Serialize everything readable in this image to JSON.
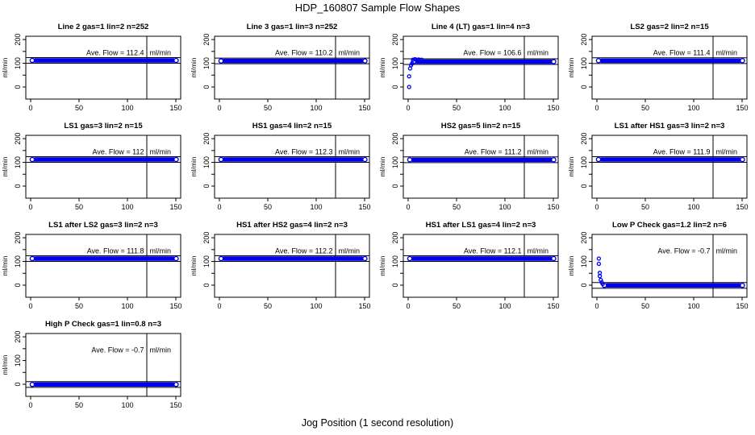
{
  "page": {
    "title": "HDP_160807  Sample Flow Shapes",
    "xlabel": "Jog Position (1 second resolution)"
  },
  "chart_data": {
    "type": "scatter",
    "title": "HDP_160807  Sample Flow Shapes",
    "xlabel": "Jog Position (1 second resolution)",
    "ylabel": "ml/min",
    "unit": "ml/min",
    "ave_label": "Ave. Flow = ",
    "axes": {
      "xlim": [
        -5,
        155
      ],
      "ylim": [
        -51,
        214
      ],
      "x_ticks": [
        0,
        50,
        100,
        150
      ],
      "y_ticks": [
        0,
        50,
        100,
        150,
        200
      ],
      "y_labeled_ticks": [
        0,
        100,
        200
      ],
      "vline_x": 120,
      "grid": false
    },
    "band_halfwidth": 12,
    "colors": {
      "points": "#0000ee",
      "axis": "#000000",
      "background": "#ffffff"
    },
    "panels": [
      {
        "title": "Line 2 gas=1 lin=2 n=252",
        "ave_text": "Ave. Flow =  112.4",
        "ave_flow": 112.4,
        "n": 252,
        "band": {
          "x_start": 0,
          "x_end": 152,
          "y": 112
        },
        "ramp_points": []
      },
      {
        "title": "Line 3 gas=1 lin=3 n=252",
        "ave_text": "Ave. Flow =  110.2",
        "ave_flow": 110.2,
        "n": 252,
        "band": {
          "x_start": 0,
          "x_end": 152,
          "y": 110
        },
        "ramp_points": []
      },
      {
        "title": "Line 4 (LT) gas=1 lin=4 n=3",
        "ave_text": "Ave. Flow =  106.6",
        "ave_flow": 106.6,
        "n": 3,
        "band": {
          "x_start": 4,
          "x_end": 152,
          "y": 107
        },
        "ramp_points": [
          [
            1,
            0
          ],
          [
            1,
            45
          ],
          [
            2,
            78
          ],
          [
            3,
            92
          ],
          [
            4,
            99
          ],
          [
            5,
            115
          ],
          [
            7,
            117
          ],
          [
            9,
            115
          ],
          [
            11,
            116
          ],
          [
            14,
            115
          ]
        ]
      },
      {
        "title": "LS2 gas=2 lin=2 n=15",
        "ave_text": "Ave. Flow =  111.4",
        "ave_flow": 111.4,
        "n": 15,
        "band": {
          "x_start": 0,
          "x_end": 152,
          "y": 111
        },
        "ramp_points": []
      },
      {
        "title": "LS1 gas=3 lin=2 n=15",
        "ave_text": "Ave. Flow =  112",
        "ave_flow": 112,
        "n": 15,
        "band": {
          "x_start": 0,
          "x_end": 152,
          "y": 112
        },
        "ramp_points": []
      },
      {
        "title": "HS1 gas=4 lin=2 n=15",
        "ave_text": "Ave. Flow =  112.3",
        "ave_flow": 112.3,
        "n": 15,
        "band": {
          "x_start": 0,
          "x_end": 152,
          "y": 112
        },
        "ramp_points": []
      },
      {
        "title": "HS2 gas=5 lin=2 n=15",
        "ave_text": "Ave. Flow =  111.2",
        "ave_flow": 111.2,
        "n": 15,
        "band": {
          "x_start": 0,
          "x_end": 152,
          "y": 111
        },
        "ramp_points": []
      },
      {
        "title": "LS1 after HS1 gas=3 lin=2 n=3",
        "ave_text": "Ave. Flow =  111.9",
        "ave_flow": 111.9,
        "n": 3,
        "band": {
          "x_start": 0,
          "x_end": 152,
          "y": 112
        },
        "ramp_points": []
      },
      {
        "title": "LS1 after LS2 gas=3 lin=2 n=3",
        "ave_text": "Ave. Flow =  111.8",
        "ave_flow": 111.8,
        "n": 3,
        "band": {
          "x_start": 0,
          "x_end": 152,
          "y": 112
        },
        "ramp_points": []
      },
      {
        "title": "HS1 after HS2 gas=4 lin=2 n=3",
        "ave_text": "Ave. Flow =  112.2",
        "ave_flow": 112.2,
        "n": 3,
        "band": {
          "x_start": 0,
          "x_end": 152,
          "y": 112
        },
        "ramp_points": []
      },
      {
        "title": "HS1 after LS1 gas=4 lin=2 n=3",
        "ave_text": "Ave. Flow =  112.1",
        "ave_flow": 112.1,
        "n": 3,
        "band": {
          "x_start": 0,
          "x_end": 152,
          "y": 112
        },
        "ramp_points": []
      },
      {
        "title": "Low P Check gas=1.2 lin=2 n=6",
        "ave_text": "Ave. Flow =  -0.7",
        "ave_flow": -0.7,
        "n": 6,
        "band": {
          "x_start": 6,
          "x_end": 152,
          "y": -1
        },
        "ramp_points": [
          [
            2,
            112
          ],
          [
            2,
            90
          ],
          [
            3,
            52
          ],
          [
            3,
            38
          ],
          [
            4,
            22
          ],
          [
            5,
            12
          ],
          [
            6,
            5
          ]
        ]
      },
      {
        "title": "High P Check gas=1 lin=0.8 n=3",
        "ave_text": "Ave. Flow =  -0.7",
        "ave_flow": -0.7,
        "n": 3,
        "band": {
          "x_start": 0,
          "x_end": 152,
          "y": -1
        },
        "ramp_points": []
      }
    ]
  }
}
